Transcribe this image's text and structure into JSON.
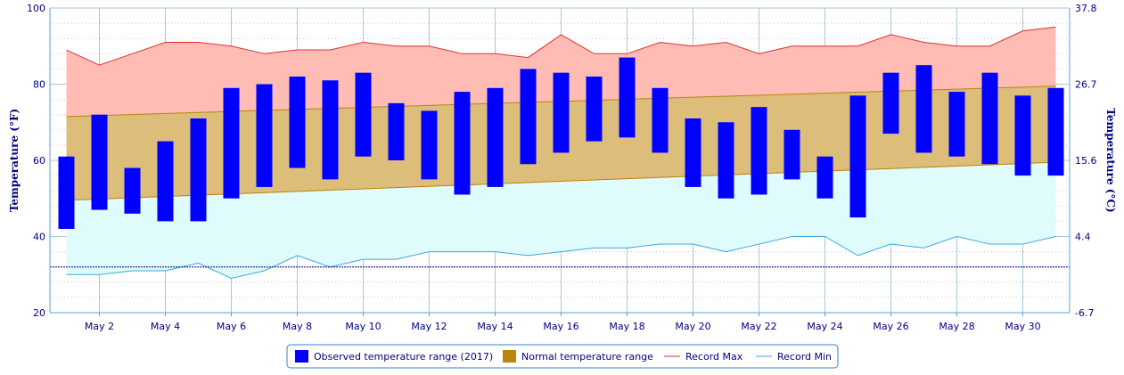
{
  "chart_data": {
    "type": "bar",
    "ylabel_left": "Temperature (°F)",
    "ylabel_right": "Temperature (°C)",
    "ylim": [
      20,
      100
    ],
    "y_ticks": [
      20,
      40,
      60,
      80,
      100
    ],
    "y_ticks_right": [
      "-6.7",
      "4.4",
      "15.6",
      "26.7",
      "37.8"
    ],
    "grid": true,
    "days": [
      1,
      2,
      3,
      4,
      5,
      6,
      7,
      8,
      9,
      10,
      11,
      12,
      13,
      14,
      15,
      16,
      17,
      18,
      19,
      20,
      21,
      22,
      23,
      24,
      25,
      26,
      27,
      28,
      29,
      30,
      31
    ],
    "x_ticks": [
      {
        "day": 2,
        "label": "May 2"
      },
      {
        "day": 4,
        "label": "May 4"
      },
      {
        "day": 6,
        "label": "May 6"
      },
      {
        "day": 8,
        "label": "May 8"
      },
      {
        "day": 10,
        "label": "May 10"
      },
      {
        "day": 12,
        "label": "May 12"
      },
      {
        "day": 14,
        "label": "May 14"
      },
      {
        "day": 16,
        "label": "May 16"
      },
      {
        "day": 18,
        "label": "May 18"
      },
      {
        "day": 20,
        "label": "May 20"
      },
      {
        "day": 22,
        "label": "May 22"
      },
      {
        "day": 24,
        "label": "May 24"
      },
      {
        "day": 26,
        "label": "May 26"
      },
      {
        "day": 28,
        "label": "May 28"
      },
      {
        "day": 30,
        "label": "May 30"
      }
    ],
    "freezing_line": 32,
    "series": [
      {
        "name": "Observed temperature range (2017)",
        "color": "#0000ff",
        "low": [
          42,
          47,
          46,
          44,
          44,
          50,
          53,
          58,
          55,
          61,
          60,
          55,
          51,
          53,
          59,
          62,
          65,
          66,
          62,
          53,
          50,
          51,
          55,
          50,
          45,
          67,
          62,
          61,
          59,
          56,
          56
        ],
        "high": [
          61,
          72,
          58,
          65,
          71,
          79,
          80,
          82,
          81,
          83,
          75,
          73,
          78,
          79,
          84,
          83,
          82,
          87,
          79,
          71,
          70,
          74,
          68,
          61,
          77,
          83,
          85,
          78,
          83,
          77,
          79
        ]
      },
      {
        "name": "Normal temperature range",
        "color": "#b8860b",
        "low_start": 49.5,
        "low_end": 59.5,
        "high_start": 71.5,
        "high_end": 79.5
      },
      {
        "name": "Record Max",
        "color": "#e03030",
        "values": [
          89,
          85,
          88,
          91,
          91,
          90,
          88,
          89,
          89,
          91,
          90,
          90,
          88,
          88,
          87,
          93,
          88,
          88,
          91,
          90,
          91,
          88,
          90,
          90,
          90,
          93,
          91,
          90,
          90,
          94,
          95
        ]
      },
      {
        "name": "Record Min",
        "color": "#3aa8e0",
        "values": [
          30,
          30,
          31,
          31,
          33,
          29,
          31,
          35,
          32,
          34,
          34,
          36,
          36,
          36,
          35,
          36,
          37,
          37,
          38,
          38,
          36,
          38,
          40,
          40,
          35,
          38,
          37,
          40,
          38,
          38,
          40
        ]
      }
    ],
    "legend_position": "bottom-center"
  }
}
